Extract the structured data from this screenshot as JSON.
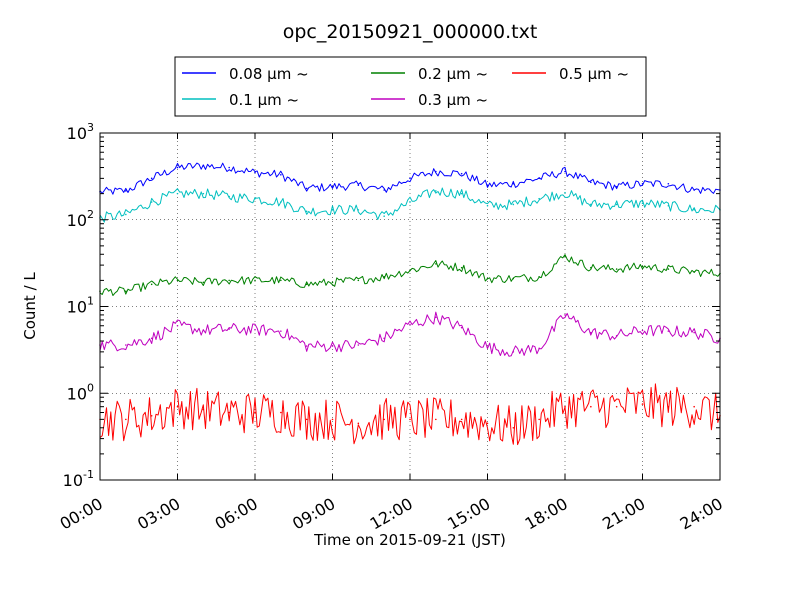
{
  "chart_data": {
    "type": "line",
    "title": "opc_20150921_000000.txt",
    "xlabel": "Time on 2015-09-21 (JST)",
    "ylabel": "Count / L",
    "yscale": "log",
    "xlim": [
      "00:00",
      "24:00"
    ],
    "ylim": [
      0.1,
      1000
    ],
    "grid": true,
    "legend_position": "top-center",
    "x_ticks": [
      "00:00",
      "03:00",
      "06:00",
      "09:00",
      "12:00",
      "15:00",
      "18:00",
      "21:00",
      "24:00"
    ],
    "y_ticks": [
      {
        "value": 0.1,
        "base": "10",
        "exp": "-1"
      },
      {
        "value": 1,
        "base": "10",
        "exp": "0"
      },
      {
        "value": 10,
        "base": "10",
        "exp": "1"
      },
      {
        "value": 100,
        "base": "10",
        "exp": "2"
      },
      {
        "value": 1000,
        "base": "10",
        "exp": "3"
      }
    ],
    "x": [
      "00:00",
      "01:00",
      "02:00",
      "03:00",
      "04:00",
      "05:00",
      "06:00",
      "07:00",
      "08:00",
      "09:00",
      "10:00",
      "11:00",
      "12:00",
      "13:00",
      "14:00",
      "15:00",
      "16:00",
      "17:00",
      "18:00",
      "19:00",
      "20:00",
      "21:00",
      "22:00",
      "23:00",
      "24:00"
    ],
    "series": [
      {
        "name": "0.08 μm ~",
        "color": "#0000ff",
        "values": [
          210,
          215,
          300,
          400,
          420,
          400,
          350,
          330,
          230,
          240,
          250,
          220,
          300,
          360,
          340,
          250,
          260,
          300,
          360,
          270,
          240,
          260,
          260,
          220,
          220
        ]
      },
      {
        "name": "0.1 μm ~",
        "color": "#00bfbf",
        "values": [
          105,
          115,
          160,
          200,
          200,
          185,
          175,
          160,
          125,
          130,
          130,
          110,
          160,
          215,
          200,
          145,
          150,
          175,
          205,
          150,
          150,
          155,
          145,
          130,
          130
        ]
      },
      {
        "name": "0.2 μm ~",
        "color": "#008000",
        "values": [
          15,
          15,
          18,
          20,
          19,
          20,
          20,
          20,
          18,
          19,
          20,
          22,
          26,
          31,
          28,
          21,
          21,
          22,
          38,
          28,
          27,
          29,
          27,
          25,
          24
        ]
      },
      {
        "name": "0.3 μm ~",
        "color": "#bf00bf",
        "values": [
          3.6,
          3.6,
          4.3,
          6.0,
          5.3,
          5.5,
          5.4,
          5.2,
          3.5,
          3.5,
          3.6,
          4.3,
          6.2,
          7.5,
          5.7,
          3.4,
          3.0,
          3.3,
          8.0,
          5.0,
          4.6,
          5.3,
          5.2,
          5.0,
          4.3
        ]
      },
      {
        "name": "0.5 μm ~",
        "color": "#ff0000",
        "values": [
          0.5,
          0.5,
          0.55,
          0.7,
          0.65,
          0.6,
          0.6,
          0.6,
          0.5,
          0.5,
          0.45,
          0.5,
          0.5,
          0.5,
          0.5,
          0.45,
          0.4,
          0.5,
          0.7,
          0.7,
          0.7,
          0.75,
          0.7,
          0.7,
          0.55
        ]
      }
    ]
  }
}
